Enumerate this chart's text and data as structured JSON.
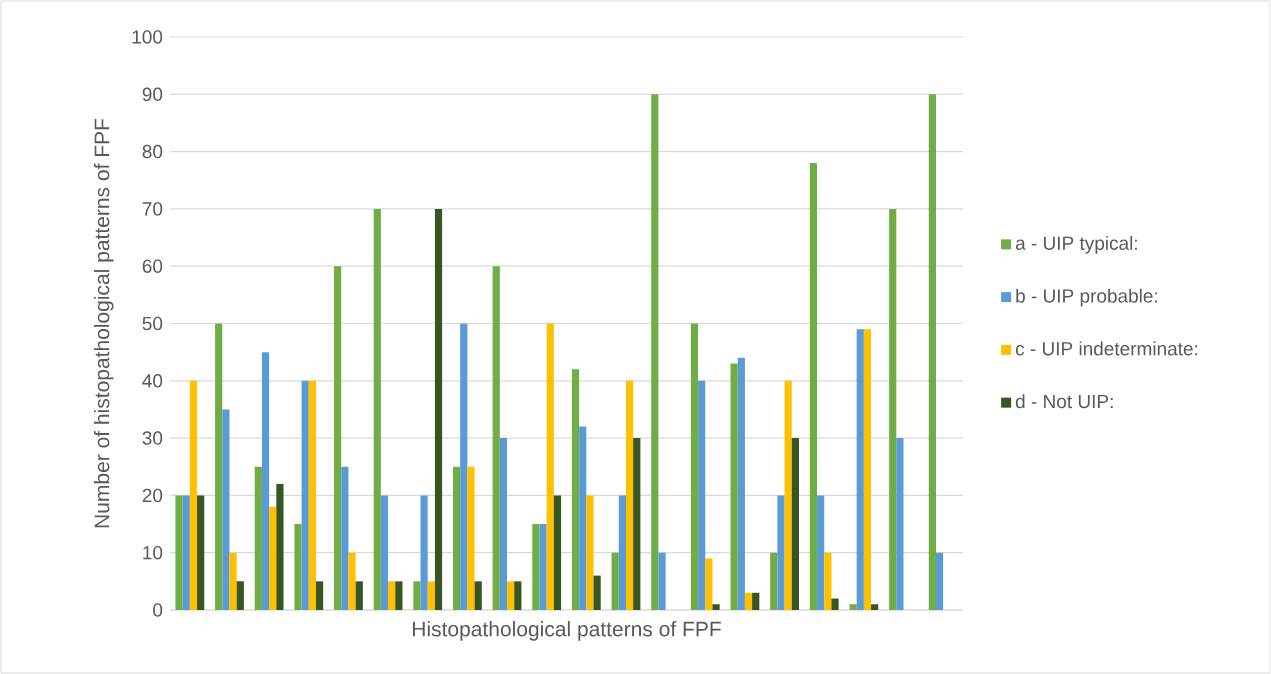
{
  "chart_data": {
    "type": "bar",
    "xlabel": "Histopathological patterns of FPF",
    "ylabel": "Number of histopathological patterns of FPF",
    "categories": [
      null,
      null,
      null,
      null,
      null,
      null,
      null,
      null,
      null,
      null,
      null,
      null,
      null,
      null,
      null,
      null,
      null,
      null,
      null,
      null
    ],
    "series": [
      {
        "name": "a - UIP typical:",
        "color": "#70ad47",
        "values": [
          20,
          50,
          25,
          15,
          60,
          70,
          5,
          25,
          60,
          15,
          42,
          10,
          90,
          50,
          43,
          10,
          78,
          1,
          70,
          90
        ]
      },
      {
        "name": "b - UIP probable:",
        "color": "#5b9bd5",
        "values": [
          20,
          35,
          45,
          40,
          25,
          20,
          20,
          50,
          30,
          15,
          32,
          20,
          10,
          40,
          44,
          20,
          20,
          49,
          30,
          10
        ]
      },
      {
        "name": "c - UIP indeterminate:",
        "color": "#ffc000",
        "values": [
          40,
          10,
          18,
          40,
          10,
          5,
          5,
          25,
          5,
          50,
          20,
          40,
          null,
          9,
          3,
          40,
          10,
          49,
          null,
          null
        ]
      },
      {
        "name": "d - Not UIP:",
        "color": "#375623",
        "values": [
          20,
          5,
          22,
          5,
          5,
          5,
          70,
          5,
          5,
          20,
          6,
          30,
          null,
          1,
          3,
          30,
          2,
          1,
          null,
          null
        ]
      }
    ],
    "ylim": [
      0,
      100
    ],
    "yticks": [
      0,
      10,
      20,
      30,
      40,
      50,
      60,
      70,
      80,
      90,
      100
    ],
    "grid": "y",
    "legend": "right"
  }
}
